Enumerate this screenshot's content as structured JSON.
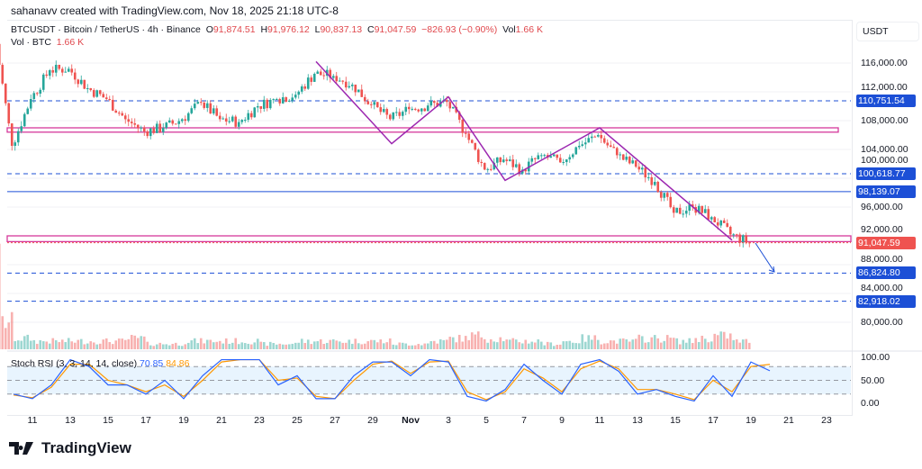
{
  "header": {
    "credit": "sahanavv created with TradingView.com, Nov 18, 2025 21:18 UTC-8",
    "symbol": "BTCUSDT · Bitcoin / TetherUS · 4h · Binance",
    "o_label": "O",
    "o": "91,874.51",
    "h_label": "H",
    "h": "91,976.12",
    "l_label": "L",
    "l": "90,837.13",
    "c_label": "C",
    "c": "91,047.59",
    "change": "−826.93 (−0.90%)",
    "vol_label": "Vol",
    "vol": "1.66 K",
    "vol_line_label": "Vol · BTC",
    "vol_line_value": "1.66 K"
  },
  "currency": "USDT",
  "colors": {
    "up": "#26a69a",
    "down": "#ef5350",
    "line_blue": "#1c4fd6",
    "pink": "#d6389b",
    "purple": "#9c27b0",
    "rsi_k": "#2962ff",
    "rsi_d": "#ff9800"
  },
  "chart_data": [
    {
      "type": "candlestick",
      "timeframe": "4h",
      "ylim": [
        78000,
        122000
      ],
      "y_ticks": [
        "116,000.00",
        "112,000.00",
        "108,000.00",
        "104,000.00",
        "100,000.00",
        "96,000.00",
        "92,000.00",
        "88,000.00",
        "84,000.00",
        "80,000.00"
      ],
      "x_ticks": [
        "11",
        "13",
        "15",
        "17",
        "19",
        "21",
        "23",
        "25",
        "27",
        "29",
        "Nov",
        "3",
        "5",
        "7",
        "9",
        "11",
        "13",
        "15",
        "17",
        "19",
        "21",
        "23"
      ],
      "daily_close": [
        {
          "d": "Oct 10",
          "c": 104500
        },
        {
          "d": "Oct 11",
          "c": 111000
        },
        {
          "d": "Oct 12",
          "c": 115000
        },
        {
          "d": "Oct 13",
          "c": 115200
        },
        {
          "d": "Oct 14",
          "c": 112500
        },
        {
          "d": "Oct 15",
          "c": 111000
        },
        {
          "d": "Oct 16",
          "c": 108200
        },
        {
          "d": "Oct 17",
          "c": 106500
        },
        {
          "d": "Oct 18",
          "c": 107000
        },
        {
          "d": "Oct 19",
          "c": 108200
        },
        {
          "d": "Oct 20",
          "c": 110500
        },
        {
          "d": "Oct 21",
          "c": 108200
        },
        {
          "d": "Oct 22",
          "c": 107800
        },
        {
          "d": "Oct 23",
          "c": 110000
        },
        {
          "d": "Oct 24",
          "c": 111000
        },
        {
          "d": "Oct 25",
          "c": 111600
        },
        {
          "d": "Oct 26",
          "c": 114500
        },
        {
          "d": "Oct 27",
          "c": 114200
        },
        {
          "d": "Oct 28",
          "c": 113000
        },
        {
          "d": "Oct 29",
          "c": 110200
        },
        {
          "d": "Oct 30",
          "c": 108200
        },
        {
          "d": "Oct 31",
          "c": 109600
        },
        {
          "d": "Nov 1",
          "c": 110100
        },
        {
          "d": "Nov 2",
          "c": 110600
        },
        {
          "d": "Nov 3",
          "c": 106200
        },
        {
          "d": "Nov 4",
          "c": 101200
        },
        {
          "d": "Nov 5",
          "c": 102600
        },
        {
          "d": "Nov 6",
          "c": 101200
        },
        {
          "d": "Nov 7",
          "c": 103200
        },
        {
          "d": "Nov 8",
          "c": 102200
        },
        {
          "d": "Nov 9",
          "c": 104500
        },
        {
          "d": "Nov 10",
          "c": 106000
        },
        {
          "d": "Nov 11",
          "c": 103200
        },
        {
          "d": "Nov 12",
          "c": 101600
        },
        {
          "d": "Nov 13",
          "c": 99500
        },
        {
          "d": "Nov 14",
          "c": 95200
        },
        {
          "d": "Nov 15",
          "c": 96000
        },
        {
          "d": "Nov 16",
          "c": 94600
        },
        {
          "d": "Nov 17",
          "c": 92200
        },
        {
          "d": "Nov 18",
          "c": 91047.59
        }
      ],
      "volume_daily_rel": [
        10,
        4,
        3,
        3,
        3,
        3,
        3,
        4,
        2,
        2,
        3,
        3,
        3,
        3,
        2,
        2,
        3,
        3,
        3,
        3,
        3,
        2,
        2,
        3,
        4,
        5,
        4,
        3,
        3,
        2,
        3,
        4,
        3,
        3,
        4,
        4,
        3,
        4,
        5,
        3
      ],
      "horizontal_levels": [
        {
          "price": 110751.54,
          "label": "110,751.54",
          "style": "dashed"
        },
        {
          "price": 100618.77,
          "label": "100,618.77",
          "style": "dashed"
        },
        {
          "price": 98139.07,
          "label": "98,139.07",
          "style": "solid"
        },
        {
          "price": 86824.8,
          "label": "86,824.80",
          "style": "dashed"
        },
        {
          "price": 82918.02,
          "label": "82,918.02",
          "style": "dashed"
        }
      ],
      "last_price": {
        "price": 91047.59,
        "label": "91,047.59"
      },
      "zones": [
        {
          "from": 106400,
          "to": 107000
        },
        {
          "from": 91200,
          "to": 92000
        }
      ],
      "zigzag": [
        {
          "d": "Oct 26",
          "p": 116200
        },
        {
          "d": "Oct 30",
          "p": 104800
        },
        {
          "d": "Nov 2",
          "p": 111300
        },
        {
          "d": "Nov 5",
          "p": 99700
        },
        {
          "d": "Nov 10",
          "p": 107000
        },
        {
          "d": "Nov 17",
          "p": 91400
        }
      ],
      "arrow": {
        "from": {
          "d": "Nov 18",
          "p": 91000
        },
        "to": {
          "d": "Nov 19",
          "p": 87000
        }
      }
    },
    {
      "type": "line",
      "title": "Stoch RSI (3, 3, 14, 14, close)",
      "k_value": "70.85",
      "d_value": "84.86",
      "ylim": [
        0,
        100
      ],
      "y_ticks": [
        "100.00",
        "50.00",
        "0.00"
      ],
      "bands": [
        20,
        50,
        80
      ],
      "k_daily": [
        20,
        10,
        40,
        95,
        80,
        40,
        40,
        20,
        50,
        10,
        60,
        95,
        95,
        95,
        40,
        60,
        10,
        10,
        60,
        90,
        90,
        60,
        95,
        90,
        15,
        5,
        30,
        85,
        50,
        20,
        85,
        95,
        70,
        20,
        30,
        15,
        5,
        60,
        15,
        90,
        70.85
      ],
      "d_daily": [
        18,
        12,
        35,
        85,
        85,
        50,
        40,
        25,
        40,
        15,
        50,
        90,
        95,
        95,
        50,
        55,
        15,
        10,
        50,
        85,
        92,
        65,
        90,
        92,
        25,
        8,
        25,
        75,
        55,
        25,
        75,
        92,
        75,
        30,
        30,
        20,
        8,
        50,
        25,
        80,
        84.86
      ]
    }
  ],
  "branding": {
    "logo_text": "TradingView"
  }
}
